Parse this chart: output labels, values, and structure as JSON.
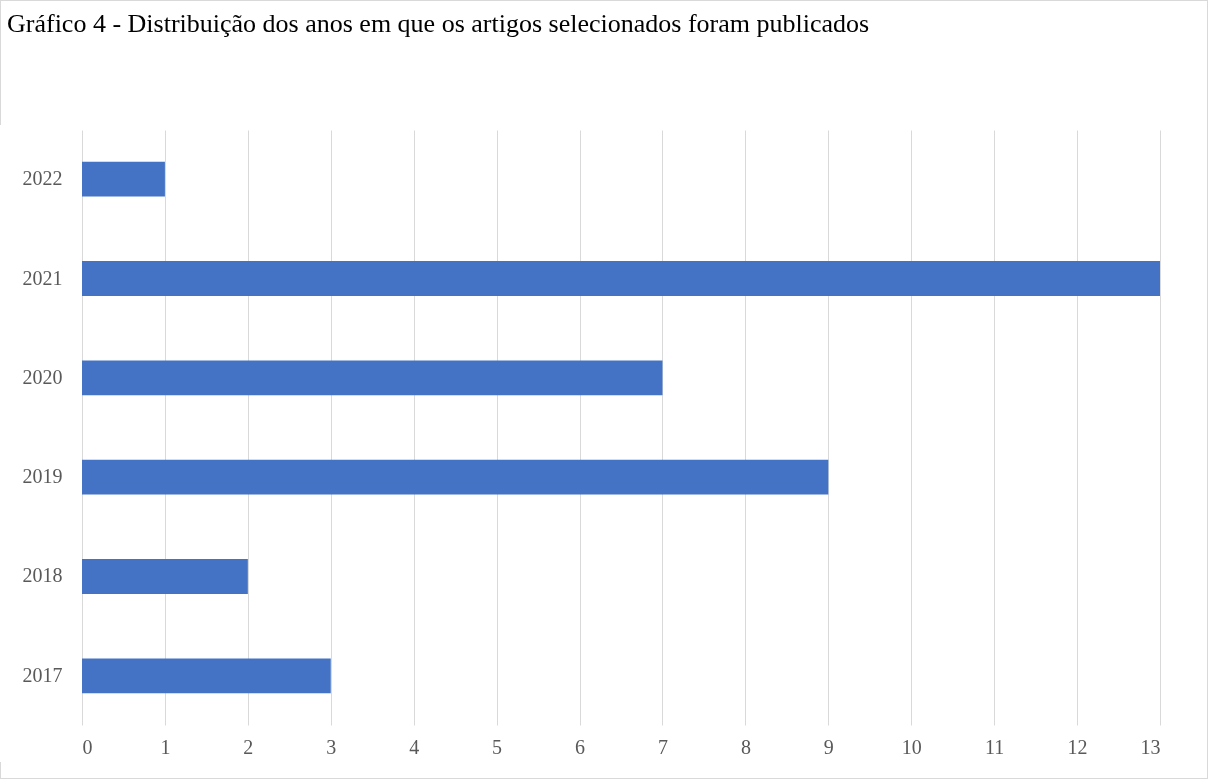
{
  "chart_data": {
    "type": "bar",
    "orientation": "horizontal",
    "title": "Gráfico 4 - Distribuição dos anos em que os artigos selecionados foram publicados",
    "categories": [
      "2022",
      "2021",
      "2020",
      "2019",
      "2018",
      "2017"
    ],
    "values": [
      1,
      13,
      7,
      9,
      2,
      3
    ],
    "color": "#4472c4",
    "xlim": [
      0,
      13
    ],
    "xticks": [
      0,
      1,
      2,
      3,
      4,
      5,
      6,
      7,
      8,
      9,
      10,
      11,
      12,
      13
    ],
    "grid": "x"
  }
}
